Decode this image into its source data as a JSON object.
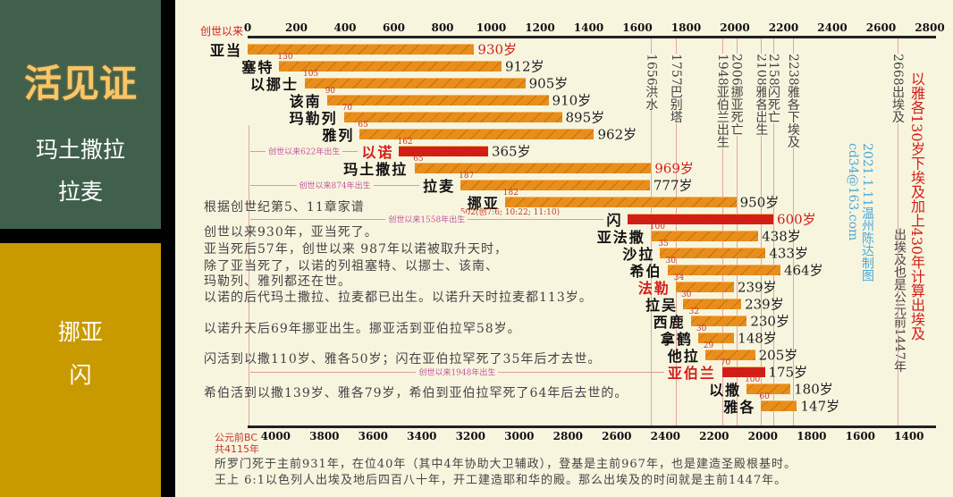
{
  "sidebar": {
    "title": "活见证",
    "group1": [
      "玛土撒拉",
      "拉麦"
    ],
    "group2": [
      "挪亚",
      "闪"
    ]
  },
  "chart_data": {
    "type": "bar",
    "title": "",
    "top_axis_label": "创世以来",
    "top_ticks": [
      0,
      200,
      400,
      600,
      800,
      1000,
      1200,
      1400,
      1600,
      1800,
      2000,
      2200,
      2400,
      2600,
      2800
    ],
    "xlim_am": [
      0,
      2800
    ],
    "bottom_axis_label": "公元前BC",
    "bottom_axis_note": "共4115年",
    "bottom_ticks": [
      4000,
      3800,
      3600,
      3400,
      3200,
      3000,
      2800,
      2600,
      2400,
      2200,
      2000,
      1800,
      1600,
      1400
    ],
    "bc_offset": 4115,
    "series": [
      {
        "name": "亚当",
        "start": 0,
        "life": 930,
        "life_label": "930岁",
        "beget": "",
        "highlight_name": false,
        "red_bar": false,
        "red_life": true
      },
      {
        "name": "塞特",
        "start": 130,
        "life": 912,
        "life_label": "912岁",
        "beget": "130",
        "highlight_name": false,
        "red_bar": false,
        "red_life": false
      },
      {
        "name": "以挪士",
        "start": 235,
        "life": 905,
        "life_label": "905岁",
        "beget": "105",
        "highlight_name": false,
        "red_bar": false,
        "red_life": false
      },
      {
        "name": "该南",
        "start": 325,
        "life": 910,
        "life_label": "910岁",
        "beget": "90",
        "highlight_name": false,
        "red_bar": false,
        "red_life": false
      },
      {
        "name": "玛勒列",
        "start": 395,
        "life": 895,
        "life_label": "895岁",
        "beget": "70",
        "highlight_name": false,
        "red_bar": false,
        "red_life": false
      },
      {
        "name": "雅列",
        "start": 460,
        "life": 962,
        "life_label": "962岁",
        "beget": "65",
        "highlight_name": false,
        "red_bar": false,
        "red_life": false
      },
      {
        "name": "以诺",
        "start": 622,
        "life": 365,
        "life_label": "365岁",
        "beget": "162",
        "highlight_name": true,
        "red_bar": true,
        "red_life": false,
        "birth_note": "创世以来622年出生"
      },
      {
        "name": "玛土撒拉",
        "start": 687,
        "life": 969,
        "life_label": "969岁",
        "beget": "65",
        "highlight_name": false,
        "red_bar": false,
        "red_life": true
      },
      {
        "name": "拉麦",
        "start": 874,
        "life": 777,
        "life_label": "777岁",
        "beget": "187",
        "highlight_name": false,
        "red_bar": false,
        "red_life": false,
        "birth_note": "创世以来874年出生"
      },
      {
        "name": "挪亚",
        "start": 1056,
        "life": 950,
        "life_label": "950岁",
        "beget": "182",
        "highlight_name": false,
        "red_bar": false,
        "red_life": false
      },
      {
        "name": "闪",
        "start": 1558,
        "life": 600,
        "life_label": "600岁",
        "beget": "",
        "highlight_name": false,
        "red_bar": true,
        "red_life": true,
        "birth_note": "创世以来1558年出生"
      },
      {
        "name": "亚法撒",
        "start": 1658,
        "life": 438,
        "life_label": "438岁",
        "beget": "100",
        "highlight_name": false,
        "red_bar": false,
        "red_life": false
      },
      {
        "name": "沙拉",
        "start": 1693,
        "life": 433,
        "life_label": "433岁",
        "beget": "35",
        "highlight_name": false,
        "red_bar": false,
        "red_life": false
      },
      {
        "name": "希伯",
        "start": 1723,
        "life": 464,
        "life_label": "464岁",
        "beget": "30",
        "highlight_name": false,
        "red_bar": false,
        "red_life": false
      },
      {
        "name": "法勒",
        "start": 1757,
        "life": 239,
        "life_label": "239岁",
        "beget": "34",
        "highlight_name": true,
        "red_bar": false,
        "red_life": false
      },
      {
        "name": "拉吴",
        "start": 1787,
        "life": 239,
        "life_label": "239岁",
        "beget": "30",
        "highlight_name": false,
        "red_bar": false,
        "red_life": false
      },
      {
        "name": "西鹿",
        "start": 1819,
        "life": 230,
        "life_label": "230岁",
        "beget": "32",
        "highlight_name": false,
        "red_bar": false,
        "red_life": false
      },
      {
        "name": "拿鹤",
        "start": 1849,
        "life": 148,
        "life_label": "148岁",
        "beget": "30",
        "highlight_name": false,
        "red_bar": false,
        "red_life": false
      },
      {
        "name": "他拉",
        "start": 1878,
        "life": 205,
        "life_label": "205岁",
        "beget": "29",
        "highlight_name": false,
        "red_bar": false,
        "red_life": false
      },
      {
        "name": "亚伯兰",
        "start": 1948,
        "life": 175,
        "life_label": "175岁",
        "beget": "70",
        "highlight_name": true,
        "red_bar": true,
        "red_life": false,
        "birth_note": "创世以来1948年出生"
      },
      {
        "name": "以撒",
        "start": 2048,
        "life": 180,
        "life_label": "180岁",
        "beget": "100",
        "highlight_name": false,
        "red_bar": false,
        "red_life": false
      },
      {
        "name": "雅各",
        "start": 2108,
        "life": 147,
        "life_label": "147岁",
        "beget": "60",
        "highlight_name": false,
        "red_bar": false,
        "red_life": false
      }
    ],
    "noah_note": "502(创7:6; 10:22; 11:10)",
    "events": [
      {
        "year": 1656,
        "label": "1656洪水"
      },
      {
        "year": 1757,
        "label": "1757巴别塔"
      },
      {
        "year": 1948,
        "label": "1948亚伯兰出生"
      },
      {
        "year": 2006,
        "label": "2006挪亚死亡"
      },
      {
        "year": 2108,
        "label": "2108雅各出生"
      },
      {
        "year": 2158,
        "label": "2158闪死亡"
      },
      {
        "year": 2238,
        "label": "2238雅各下埃及"
      },
      {
        "year": 2668,
        "label": "2668出埃及"
      }
    ]
  },
  "notes": {
    "exodus_red": "以雅各130岁下埃及加上430年计算出埃及",
    "exodus_black": "出埃及也是公元前1447年",
    "credit_date": "2021.1.11温州陈达制图",
    "credit_email": "cd34@163.com",
    "source": "根据创世纪第5、11章家谱",
    "paragraphs": [
      "创世以来930年，亚当死了。",
      "亚当死后57年，创世以来 987年以诺被取升天时，",
      "除了亚当死了，以诺的列祖塞特、以挪士、该南、",
      "玛勒列、雅列都还在世。",
      "以诺的后代玛土撒拉、拉麦都已出生。以诺升天时拉麦都113岁。",
      "以诺升天后69年挪亚出生。挪亚活到亚伯拉罕58岁。",
      "闪活到以撒110岁、雅各50岁；闪在亚伯拉罕死了35年后才去世。",
      "希伯活到以撒139岁、雅各79岁，希伯到亚伯拉罕死了64年后去世的。"
    ],
    "footer": [
      "所罗门死于主前931年，在位40年（其中4年协助大卫辅政），登基是主前967年，也是建造圣殿根基时。",
      "王上 6:1以色列人出埃及地后四百八十年，开工建造耶和华的殿。那么出埃及的时间就是主前1447年。"
    ]
  },
  "colors": {
    "bar": "#e98e1b",
    "bar_red": "#d51d17",
    "accent_red": "#d21f1a",
    "credit_blue": "#4aa8d8"
  }
}
